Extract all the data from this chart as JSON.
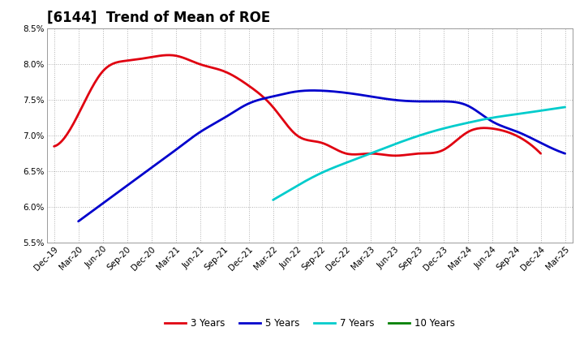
{
  "title": "[6144]  Trend of Mean of ROE",
  "x_labels": [
    "Dec-19",
    "Mar-20",
    "Jun-20",
    "Sep-20",
    "Dec-20",
    "Mar-21",
    "Jun-21",
    "Sep-21",
    "Dec-21",
    "Mar-22",
    "Jun-22",
    "Sep-22",
    "Dec-22",
    "Mar-23",
    "Jun-23",
    "Sep-23",
    "Dec-23",
    "Mar-24",
    "Jun-24",
    "Sep-24",
    "Dec-24",
    "Mar-25"
  ],
  "ylim": [
    0.055,
    0.085
  ],
  "yticks": [
    0.055,
    0.06,
    0.065,
    0.07,
    0.075,
    0.08,
    0.085
  ],
  "series_3y": {
    "color": "#e00010",
    "x_indices": [
      0,
      1,
      2,
      3,
      4,
      5,
      6,
      7,
      8,
      9,
      10,
      11,
      12,
      13,
      14,
      15,
      16,
      17,
      18,
      19,
      20
    ],
    "values": [
      0.0685,
      0.073,
      0.079,
      0.0805,
      0.081,
      0.0812,
      0.08,
      0.079,
      0.077,
      0.074,
      0.07,
      0.069,
      0.0675,
      0.0675,
      0.0672,
      0.0675,
      0.068,
      0.0705,
      0.071,
      0.07,
      0.0675
    ]
  },
  "series_5y": {
    "color": "#0000cc",
    "x_indices": [
      1,
      2,
      3,
      4,
      5,
      6,
      7,
      8,
      9,
      10,
      11,
      12,
      13,
      14,
      15,
      16,
      17,
      18,
      19,
      20,
      21
    ],
    "values": [
      0.058,
      0.0605,
      0.063,
      0.0655,
      0.068,
      0.0705,
      0.0725,
      0.0745,
      0.0755,
      0.0762,
      0.0763,
      0.076,
      0.0755,
      0.075,
      0.0748,
      0.0748,
      0.0742,
      0.072,
      0.0706,
      0.069,
      0.0675
    ]
  },
  "series_7y": {
    "color": "#00cccc",
    "x_indices": [
      9,
      10,
      11,
      12,
      13,
      14,
      15,
      16,
      17,
      18,
      19,
      20,
      21
    ],
    "values": [
      0.061,
      0.063,
      0.0648,
      0.0662,
      0.0675,
      0.0688,
      0.07,
      0.071,
      0.0718,
      0.0725,
      0.073,
      0.0735,
      0.074
    ]
  },
  "series_10y": {
    "color": "#008000",
    "x_indices": [],
    "values": []
  },
  "background_color": "#ffffff",
  "grid_color": "#b0b0b0",
  "title_fontsize": 12,
  "tick_fontsize": 7.5,
  "legend_fontsize": 8.5
}
